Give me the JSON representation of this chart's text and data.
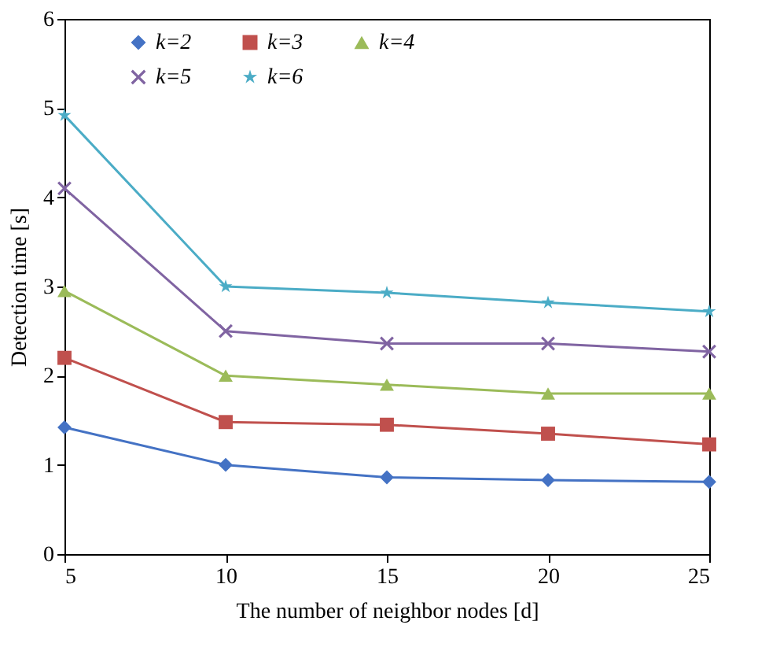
{
  "chart_data": {
    "type": "line",
    "xlabel": "The number of neighbor nodes [d]",
    "ylabel": "Detection time [s]",
    "x": [
      5,
      10,
      15,
      20,
      25
    ],
    "xlim": [
      5,
      25
    ],
    "xticks": [
      5,
      10,
      15,
      20,
      25
    ],
    "ylim": [
      0,
      6
    ],
    "yticks": [
      0,
      1,
      2,
      3,
      4,
      5,
      6
    ],
    "grid": false,
    "legend": "top",
    "line_style": "solid",
    "series": [
      {
        "name": "k=2",
        "color": "#4472c4",
        "marker": "diamond",
        "values": [
          1.42,
          1.0,
          0.86,
          0.83,
          0.81
        ]
      },
      {
        "name": "k=3",
        "color": "#c0504d",
        "marker": "square",
        "values": [
          2.2,
          1.48,
          1.45,
          1.35,
          1.23
        ]
      },
      {
        "name": "k=4",
        "color": "#9bbb59",
        "marker": "triangle",
        "values": [
          2.95,
          2.0,
          1.9,
          1.8,
          1.8
        ]
      },
      {
        "name": "k=5",
        "color": "#8064a2",
        "marker": "cross",
        "values": [
          4.1,
          2.5,
          2.36,
          2.36,
          2.27
        ]
      },
      {
        "name": "k=6",
        "color": "#4bacc6",
        "marker": "star",
        "values": [
          4.92,
          3.0,
          2.93,
          2.82,
          2.72
        ]
      }
    ]
  }
}
